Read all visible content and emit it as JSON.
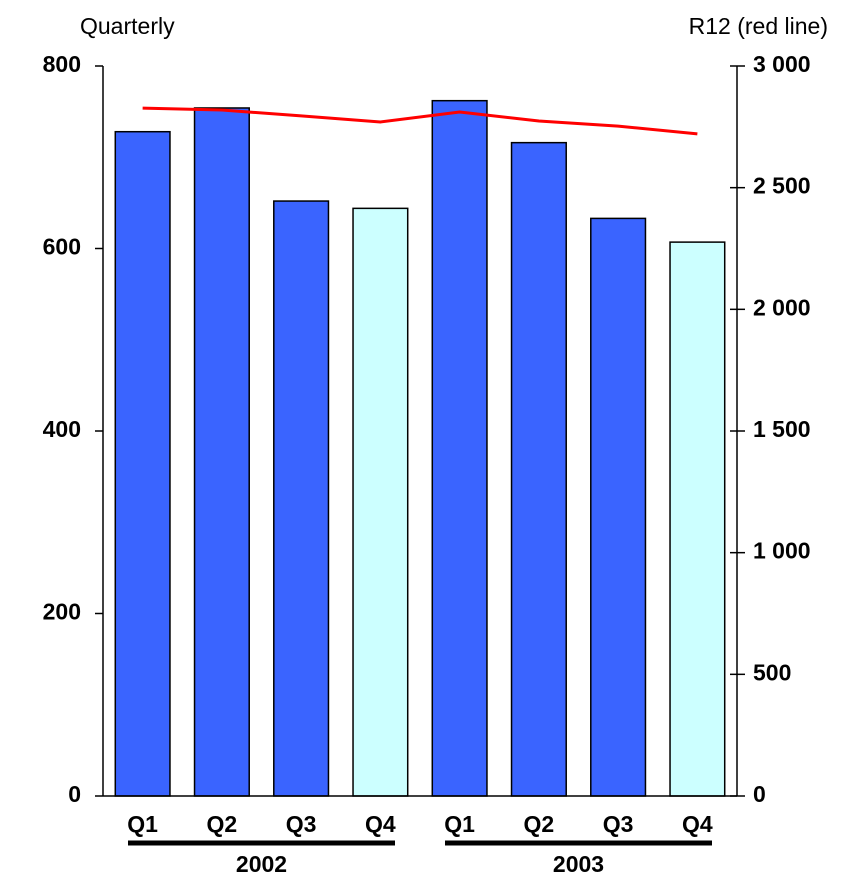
{
  "chart_data": {
    "type": "bar",
    "y_label": "Quarterly",
    "y2_label": "R12 (red line)",
    "categories": [
      "Q1",
      "Q2",
      "Q3",
      "Q4",
      "Q1",
      "Q2",
      "Q3",
      "Q4"
    ],
    "groups": [
      "2002",
      "2003"
    ],
    "series": [
      {
        "values": [
          728,
          754,
          652,
          644,
          762,
          716,
          633,
          607
        ],
        "colors": [
          "#3a64ff",
          "#3a64ff",
          "#3a64ff",
          "#ccffff",
          "#3a64ff",
          "#3a64ff",
          "#3a64ff",
          "#ccffff"
        ]
      },
      {
        "type": "line",
        "axis": "y2",
        "color": "#ff0000",
        "values": [
          2827,
          2819,
          2795,
          2770,
          2811,
          2774,
          2753,
          2721
        ]
      }
    ],
    "ylim": [
      0,
      800
    ],
    "yticks": [
      0,
      200,
      400,
      600,
      800
    ],
    "y2lim": [
      0,
      3000
    ],
    "y2ticks": [
      0,
      500,
      {
        "value": 1000,
        "label": "1 000"
      },
      {
        "value": 1500,
        "label": "1 500"
      },
      {
        "value": 2000,
        "label": "2 000"
      },
      {
        "value": 2500,
        "label": "2 500"
      },
      {
        "value": 3000,
        "label": "3 000"
      }
    ],
    "grid": false
  }
}
